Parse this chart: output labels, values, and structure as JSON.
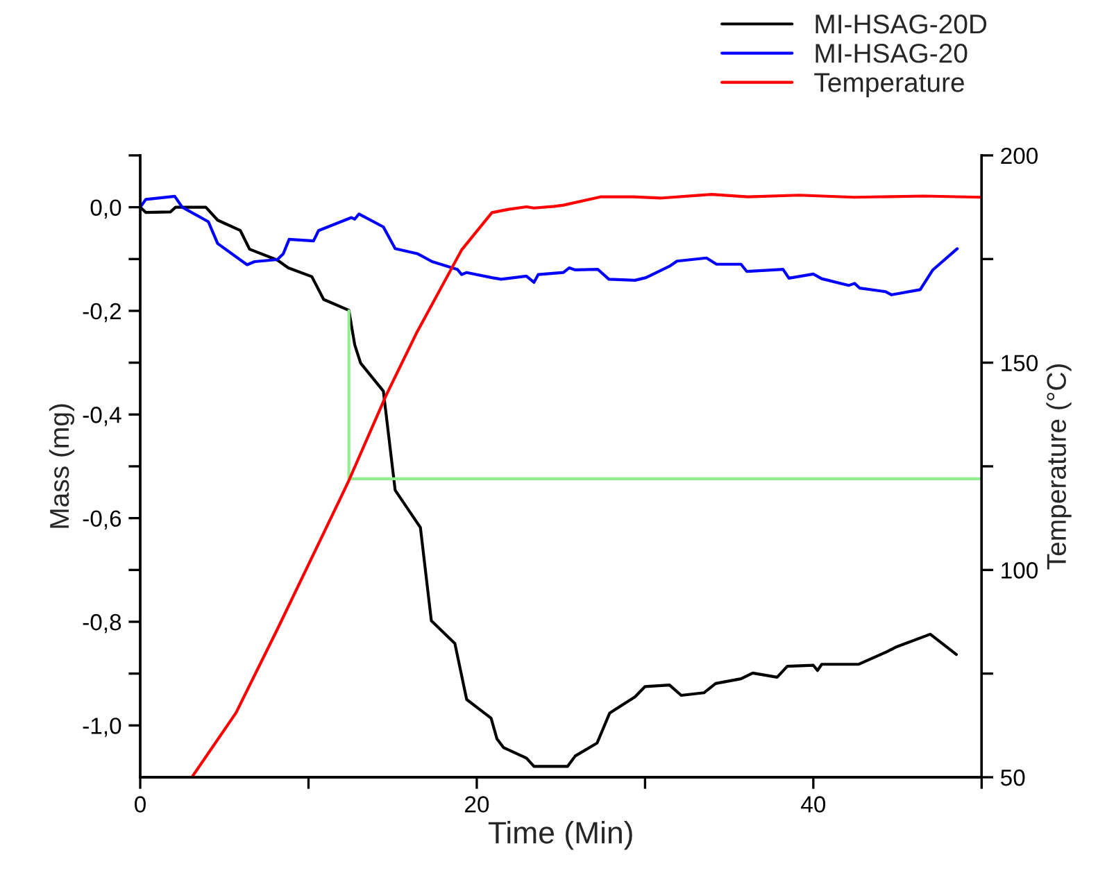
{
  "chart_data": {
    "type": "line",
    "xlabel": "Time (Min)",
    "ylabel": "Mass (mg)",
    "y2label": "Temperature (°C)",
    "xlim": [
      0,
      50
    ],
    "xticks": [
      0,
      {
        "value": 10,
        "label": null
      },
      20,
      {
        "value": 30,
        "label": null
      },
      40,
      {
        "value": 50,
        "label": null
      }
    ],
    "ylim": [
      -1.1,
      0.1
    ],
    "yticks": [
      {
        "value": 0.1,
        "label": null
      },
      {
        "value": 0,
        "label": "0,0"
      },
      {
        "value": -0.1,
        "label": null
      },
      {
        "value": -0.2,
        "label": "-0,2"
      },
      {
        "value": -0.3,
        "label": null
      },
      {
        "value": -0.4,
        "label": "-0,4"
      },
      {
        "value": -0.5,
        "label": null
      },
      {
        "value": -0.6,
        "label": "-0,6"
      },
      {
        "value": -0.7,
        "label": null
      },
      {
        "value": -0.8,
        "label": "-0,8"
      },
      {
        "value": -0.9,
        "label": null
      },
      {
        "value": -1.0,
        "label": "-1,0"
      }
    ],
    "y2lim": [
      50,
      200
    ],
    "y2ticks": [
      50,
      {
        "value": 75,
        "label": null
      },
      100,
      {
        "value": 125,
        "label": null
      },
      150,
      {
        "value": 175,
        "label": null
      },
      200
    ],
    "grid": false,
    "legend": "top right",
    "marker": "none",
    "line_style": "solid",
    "series": [
      {
        "name": "MI-HSAG-20D",
        "color": "#000000",
        "x": [
          0,
          0.33,
          1.8,
          2.1,
          3.9,
          4.6,
          5.95,
          6.5,
          8.15,
          8.8,
          10.2,
          10.9,
          12.4,
          12.75,
          13.1,
          14.45,
          15.15,
          16.65,
          17.3,
          18.7,
          19.4,
          20.85,
          21.2,
          21.6,
          22.95,
          23.4,
          25.4,
          25.85,
          27.15,
          27.9,
          29.4,
          30.0,
          31.45,
          32.15,
          33.5,
          34.2,
          35.7,
          36.4,
          37.85,
          38.45,
          40.0,
          40.25,
          40.5,
          42.7,
          44.35,
          44.9,
          46.95,
          48.5
        ],
        "values": [
          0,
          -0.01,
          -0.009,
          0,
          0,
          -0.025,
          -0.045,
          -0.081,
          -0.102,
          -0.117,
          -0.134,
          -0.178,
          -0.199,
          -0.266,
          -0.301,
          -0.355,
          -0.546,
          -0.618,
          -0.798,
          -0.842,
          -0.95,
          -0.986,
          -1.026,
          -1.043,
          -1.063,
          -1.079,
          -1.079,
          -1.059,
          -1.034,
          -0.976,
          -0.945,
          -0.925,
          -0.922,
          -0.942,
          -0.937,
          -0.919,
          -0.91,
          -0.899,
          -0.907,
          -0.886,
          -0.884,
          -0.894,
          -0.882,
          -0.882,
          -0.858,
          -0.849,
          -0.824,
          -0.863
        ]
      },
      {
        "name": "MI-HSAG-20",
        "color": "#0000ff",
        "x": [
          0,
          0.33,
          2.05,
          2.5,
          4.05,
          4.6,
          6.35,
          6.8,
          8.15,
          8.5,
          8.85,
          10.3,
          10.6,
          12.55,
          12.75,
          13.0,
          14.45,
          15.15,
          16.5,
          17.35,
          18.85,
          19.1,
          19.4,
          20.9,
          21.45,
          22.95,
          23.4,
          23.65,
          25.15,
          25.5,
          25.85,
          27.2,
          27.85,
          29.4,
          30.05,
          31.45,
          31.9,
          33.65,
          34.25,
          35.7,
          36.05,
          38.2,
          38.55,
          40.0,
          40.5,
          42.1,
          42.45,
          42.75,
          44.3,
          44.65,
          46.35,
          47.1,
          48.55
        ],
        "values": [
          0,
          0.015,
          0.021,
          0,
          -0.028,
          -0.07,
          -0.111,
          -0.105,
          -0.101,
          -0.09,
          -0.062,
          -0.065,
          -0.045,
          -0.02,
          -0.023,
          -0.013,
          -0.038,
          -0.08,
          -0.09,
          -0.105,
          -0.12,
          -0.13,
          -0.126,
          -0.136,
          -0.139,
          -0.133,
          -0.145,
          -0.13,
          -0.126,
          -0.117,
          -0.121,
          -0.12,
          -0.139,
          -0.141,
          -0.136,
          -0.114,
          -0.104,
          -0.098,
          -0.11,
          -0.11,
          -0.124,
          -0.12,
          -0.137,
          -0.129,
          -0.138,
          -0.151,
          -0.147,
          -0.156,
          -0.163,
          -0.169,
          -0.159,
          -0.121,
          -0.08
        ]
      },
      {
        "name": "Temperature",
        "color": "#ff0000",
        "axis": "y2",
        "x": [
          3.07,
          5.7,
          8.15,
          11.85,
          12.4,
          14.6,
          16.4,
          19.1,
          20.9,
          21.9,
          22.95,
          23.4,
          24.6,
          25.15,
          27.35,
          29.3,
          30.9,
          33.95,
          36.1,
          39.15,
          42.45,
          46.55,
          50
        ],
        "values": [
          50,
          65.6,
          85.7,
          116.9,
          121.6,
          142,
          157,
          177.2,
          186.2,
          187,
          187.6,
          187.3,
          187.7,
          188,
          190,
          190,
          189.7,
          190.6,
          190,
          190.4,
          189.9,
          190.2,
          189.9
        ]
      },
      {
        "color": "#90ee90",
        "x": [
          12.4,
          12.4,
          50
        ],
        "values": [
          -0.2,
          -0.524,
          -0.524
        ]
      }
    ]
  }
}
